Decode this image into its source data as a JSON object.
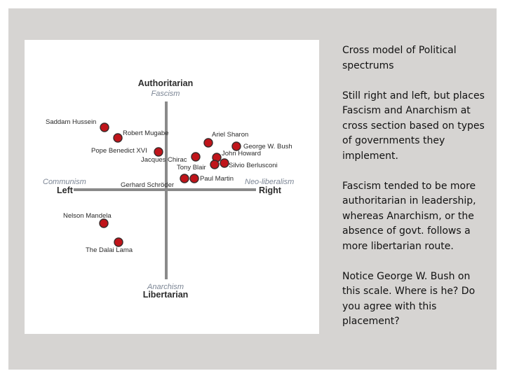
{
  "diagram": {
    "poles": {
      "top": {
        "main": "Authoritarian",
        "sub": "Fascism"
      },
      "bottom": {
        "main": "Libertarian",
        "sub": "Anarchism"
      },
      "left": {
        "main": "Left",
        "sub": "Communism"
      },
      "right": {
        "main": "Right",
        "sub": "Neo-liberalism"
      }
    },
    "leaders": [
      {
        "name": "Saddam Hussein"
      },
      {
        "name": "Robert Mugabe"
      },
      {
        "name": "Pope Benedict XVI"
      },
      {
        "name": "Ariel Sharon"
      },
      {
        "name": "George W. Bush"
      },
      {
        "name": "John Howard"
      },
      {
        "name": "Jacques Chirac"
      },
      {
        "name": "Tony Blair"
      },
      {
        "name": "Silvio Berlusconi"
      },
      {
        "name": "Gerhard Schröder"
      },
      {
        "name": "Paul Martin"
      },
      {
        "name": "Nelson Mandela"
      },
      {
        "name": "The Dalai Lama"
      }
    ],
    "dot_color": "#c0141a"
  },
  "text": {
    "title": "Cross model of Political spectrums",
    "para1": "Still right and left, but places Fascism and Anarchism at cross section based on types of governments they implement.",
    "para2": "Fascism tended to be more authoritarian in leadership, whereas Anarchism, or the absence of govt. follows a more libertarian route.",
    "para3": "Notice George W. Bush on this scale. Where is he? Do you agree with this placement?"
  },
  "colors": {
    "frame": "#d6d4d2",
    "panel": "#ffffff",
    "axis": "#8a8a8a"
  }
}
